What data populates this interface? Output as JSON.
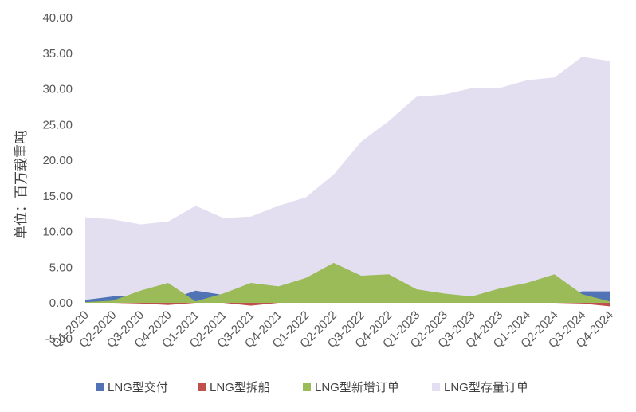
{
  "chart_data": {
    "type": "area",
    "ylabel": "单位：百万载重吨",
    "ylim": [
      -5,
      40
    ],
    "yticks": [
      "-5.00",
      "0.00",
      "5.00",
      "10.00",
      "15.00",
      "20.00",
      "25.00",
      "30.00",
      "35.00",
      "40.00"
    ],
    "categories": [
      "Q1-2020",
      "Q2-2020",
      "Q3-2020",
      "Q4-2020",
      "Q1-2021",
      "Q2-2021",
      "Q3-2021",
      "Q4-2021",
      "Q1-2022",
      "Q2-2022",
      "Q3-2022",
      "Q4-2022",
      "Q1-2023",
      "Q2-2023",
      "Q3-2023",
      "Q4-2023",
      "Q1-2024",
      "Q2-2024",
      "Q3-2024",
      "Q4-2024"
    ],
    "series": [
      {
        "name": "LNG型存量订单",
        "color": "#e4dff0",
        "values": [
          12.0,
          11.7,
          11.0,
          11.4,
          13.6,
          11.9,
          12.1,
          13.6,
          14.8,
          18.0,
          22.6,
          25.5,
          28.9,
          29.2,
          30.1,
          30.1,
          31.2,
          31.6,
          34.5,
          33.9
        ]
      },
      {
        "name": "LNG型交付",
        "color": "#4f73b5",
        "values": [
          0.4,
          0.9,
          0.9,
          0.4,
          1.7,
          1.1,
          0.4,
          0.5,
          0.6,
          0.5,
          0.5,
          0.4,
          0.5,
          0.4,
          0.4,
          0.5,
          0.6,
          0.4,
          1.6,
          1.6
        ]
      },
      {
        "name": "LNG型拆船",
        "color": "#c0504d",
        "values": [
          0,
          0,
          -0.1,
          -0.3,
          0,
          0,
          -0.4,
          0,
          0,
          0,
          0,
          0,
          0,
          0,
          0,
          0,
          0,
          0,
          -0.1,
          -0.5
        ]
      },
      {
        "name": "LNG型新增订单",
        "color": "#9bbb59",
        "values": [
          0.1,
          0.3,
          1.7,
          2.8,
          0.2,
          1.3,
          2.8,
          2.3,
          3.5,
          5.6,
          3.8,
          4.0,
          1.9,
          1.3,
          0.9,
          2.0,
          2.8,
          4.0,
          1.2,
          0.2
        ]
      }
    ],
    "legend": {
      "position": "bottom",
      "order": [
        "LNG型交付",
        "LNG型拆船",
        "LNG型新增订单",
        "LNG型存量订单"
      ]
    },
    "grid": false
  }
}
